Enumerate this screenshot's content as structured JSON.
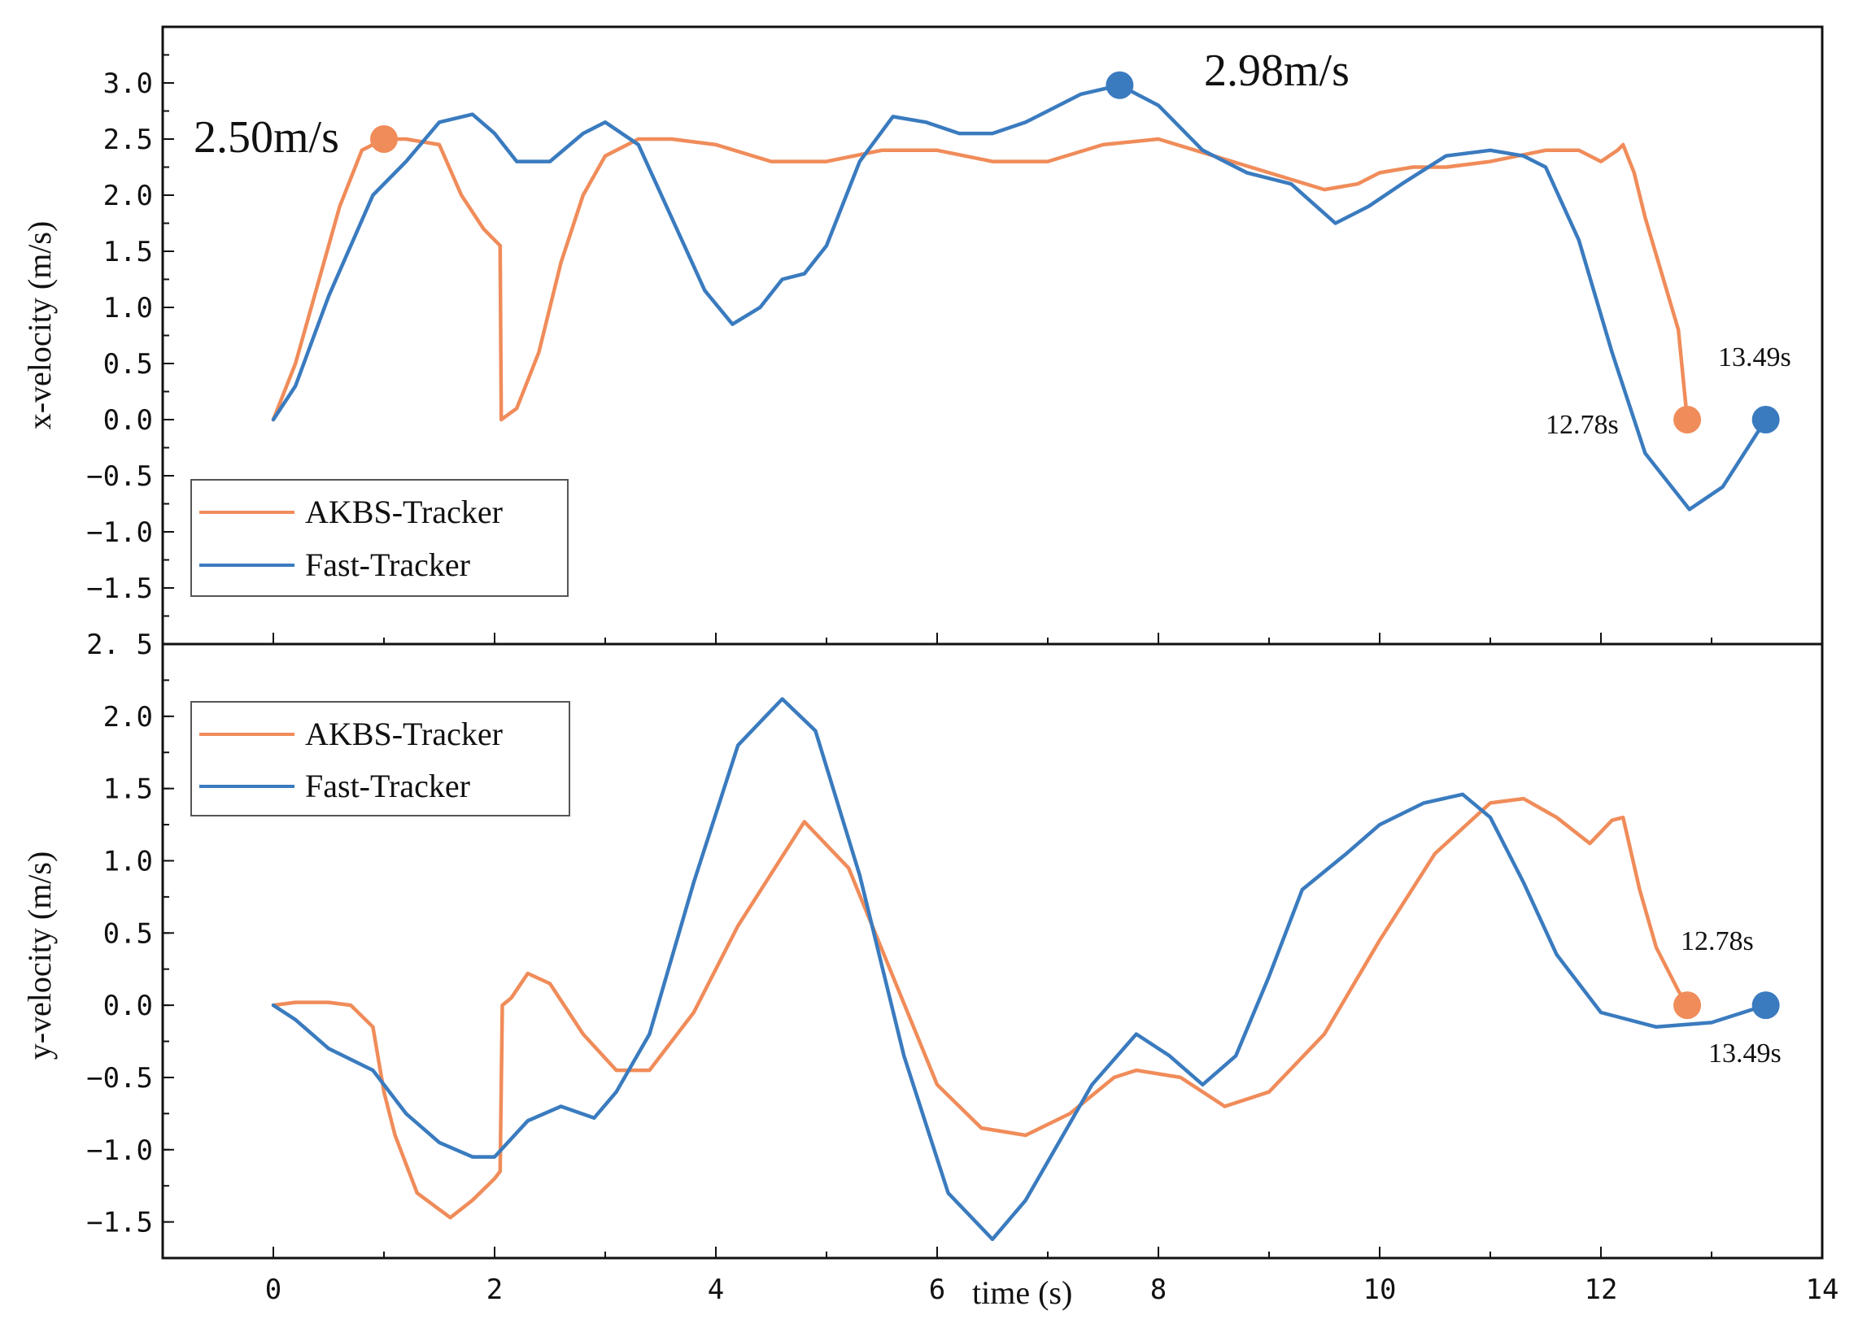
{
  "chart_data": [
    {
      "type": "line",
      "ylabel": "x-velocity (m/s)",
      "xlim": [
        -1,
        14
      ],
      "ylim": [
        -2,
        3.5
      ],
      "xticks": [
        "0",
        "2",
        "4",
        "6",
        "8",
        "10",
        "12",
        "14"
      ],
      "yticks": [
        "3.0",
        "2.5",
        "2.0",
        "1.5",
        "1.0",
        "0.5",
        "0.0",
        "−0.5",
        "−1.0",
        "−1.5"
      ],
      "legend_position": "lower-left",
      "series": [
        {
          "name": "AKBS-Tracker",
          "color": "#F08C5A",
          "x": [
            0,
            0.2,
            0.4,
            0.6,
            0.8,
            1.0,
            1.2,
            1.5,
            1.7,
            1.9,
            2.05,
            2.06,
            2.2,
            2.4,
            2.6,
            2.8,
            3.0,
            3.3,
            3.6,
            4.0,
            4.5,
            5.0,
            5.5,
            6.0,
            6.5,
            7.0,
            7.5,
            8.0,
            8.5,
            9.0,
            9.5,
            9.8,
            10.0,
            10.3,
            10.6,
            11.0,
            11.5,
            11.8,
            12.0,
            12.15,
            12.2,
            12.3,
            12.4,
            12.7,
            12.78
          ],
          "y": [
            0.0,
            0.5,
            1.2,
            1.9,
            2.4,
            2.5,
            2.5,
            2.45,
            2.0,
            1.7,
            1.55,
            0.0,
            0.1,
            0.6,
            1.4,
            2.0,
            2.35,
            2.5,
            2.5,
            2.45,
            2.3,
            2.3,
            2.4,
            2.4,
            2.3,
            2.3,
            2.45,
            2.5,
            2.35,
            2.2,
            2.05,
            2.1,
            2.2,
            2.25,
            2.25,
            2.3,
            2.4,
            2.4,
            2.3,
            2.4,
            2.45,
            2.2,
            1.8,
            0.8,
            0.0
          ]
        },
        {
          "name": "Fast-Tracker",
          "color": "#3A7BBF",
          "x": [
            0,
            0.2,
            0.5,
            0.9,
            1.2,
            1.5,
            1.8,
            2.0,
            2.2,
            2.5,
            2.8,
            3.0,
            3.3,
            3.6,
            3.9,
            4.15,
            4.4,
            4.6,
            4.8,
            5.0,
            5.3,
            5.6,
            5.9,
            6.2,
            6.5,
            6.8,
            7.0,
            7.3,
            7.65,
            8.0,
            8.4,
            8.8,
            9.2,
            9.6,
            9.9,
            10.2,
            10.6,
            11.0,
            11.3,
            11.5,
            11.8,
            12.1,
            12.4,
            12.8,
            13.1,
            13.49
          ],
          "y": [
            0.0,
            0.3,
            1.1,
            2.0,
            2.3,
            2.65,
            2.72,
            2.55,
            2.3,
            2.3,
            2.55,
            2.65,
            2.45,
            1.8,
            1.15,
            0.85,
            1.0,
            1.25,
            1.3,
            1.55,
            2.3,
            2.7,
            2.65,
            2.55,
            2.55,
            2.65,
            2.75,
            2.9,
            2.98,
            2.8,
            2.4,
            2.2,
            2.1,
            1.75,
            1.9,
            2.1,
            2.35,
            2.4,
            2.35,
            2.25,
            1.6,
            0.6,
            -0.3,
            -0.8,
            -0.6,
            0.0
          ]
        }
      ],
      "markers": [
        {
          "series": "AKBS-Tracker",
          "x": 1.0,
          "y": 2.5,
          "label": "2.50m/s"
        },
        {
          "series": "Fast-Tracker",
          "x": 7.65,
          "y": 2.98,
          "label": "2.98m/s"
        },
        {
          "series": "AKBS-Tracker",
          "x": 12.78,
          "y": 0.0,
          "label": "12.78s"
        },
        {
          "series": "Fast-Tracker",
          "x": 13.49,
          "y": 0.0,
          "label": "13.49s"
        }
      ]
    },
    {
      "type": "line",
      "xlabel": "time (s)",
      "ylabel": "y-velocity (m/s)",
      "xlim": [
        -1,
        14
      ],
      "ylim": [
        -1.75,
        2.5
      ],
      "xticks": [
        "0",
        "2",
        "4",
        "6",
        "8",
        "10",
        "12",
        "14"
      ],
      "yticks": [
        "2. 5",
        "2.0",
        "1.5",
        "1.0",
        "0.5",
        "0.0",
        "−0.5",
        "−1.0",
        "−1.5"
      ],
      "legend_position": "upper-left",
      "series": [
        {
          "name": "AKBS-Tracker",
          "color": "#F08C5A",
          "x": [
            0,
            0.2,
            0.5,
            0.7,
            0.9,
            1.0,
            1.1,
            1.3,
            1.6,
            1.8,
            2.0,
            2.05,
            2.07,
            2.15,
            2.3,
            2.5,
            2.8,
            3.1,
            3.4,
            3.8,
            4.2,
            4.8,
            5.2,
            5.6,
            6.0,
            6.4,
            6.8,
            7.2,
            7.6,
            7.8,
            8.2,
            8.6,
            9.0,
            9.5,
            10.0,
            10.5,
            11.0,
            11.3,
            11.6,
            11.9,
            12.1,
            12.2,
            12.35,
            12.5,
            12.7,
            12.78
          ],
          "y": [
            0.0,
            0.02,
            0.02,
            0.0,
            -0.15,
            -0.6,
            -0.9,
            -1.3,
            -1.47,
            -1.35,
            -1.2,
            -1.15,
            0.0,
            0.05,
            0.22,
            0.15,
            -0.2,
            -0.45,
            -0.45,
            -0.05,
            0.55,
            1.27,
            0.95,
            0.2,
            -0.55,
            -0.85,
            -0.9,
            -0.75,
            -0.5,
            -0.45,
            -0.5,
            -0.7,
            -0.6,
            -0.2,
            0.45,
            1.05,
            1.4,
            1.43,
            1.3,
            1.12,
            1.28,
            1.3,
            0.8,
            0.4,
            0.1,
            0.0
          ]
        },
        {
          "name": "Fast-Tracker",
          "color": "#3A7BBF",
          "x": [
            0,
            0.2,
            0.5,
            0.9,
            1.2,
            1.5,
            1.8,
            2.0,
            2.3,
            2.6,
            2.9,
            3.1,
            3.4,
            3.8,
            4.2,
            4.6,
            4.9,
            5.3,
            5.7,
            6.1,
            6.5,
            6.8,
            7.1,
            7.4,
            7.8,
            8.1,
            8.4,
            8.7,
            9.0,
            9.3,
            9.7,
            10.0,
            10.4,
            10.75,
            11.0,
            11.3,
            11.6,
            12.0,
            12.5,
            13.0,
            13.49
          ],
          "y": [
            0.0,
            -0.1,
            -0.3,
            -0.45,
            -0.75,
            -0.95,
            -1.05,
            -1.05,
            -0.8,
            -0.7,
            -0.78,
            -0.6,
            -0.2,
            0.85,
            1.8,
            2.12,
            1.9,
            0.9,
            -0.35,
            -1.3,
            -1.62,
            -1.35,
            -0.95,
            -0.55,
            -0.2,
            -0.35,
            -0.55,
            -0.35,
            0.2,
            0.8,
            1.05,
            1.25,
            1.4,
            1.46,
            1.3,
            0.85,
            0.35,
            -0.05,
            -0.15,
            -0.12,
            0.0
          ]
        }
      ],
      "markers": [
        {
          "series": "AKBS-Tracker",
          "x": 12.78,
          "y": 0.0,
          "label": "12.78s"
        },
        {
          "series": "Fast-Tracker",
          "x": 13.49,
          "y": 0.0,
          "label": "13.49s"
        }
      ]
    }
  ]
}
